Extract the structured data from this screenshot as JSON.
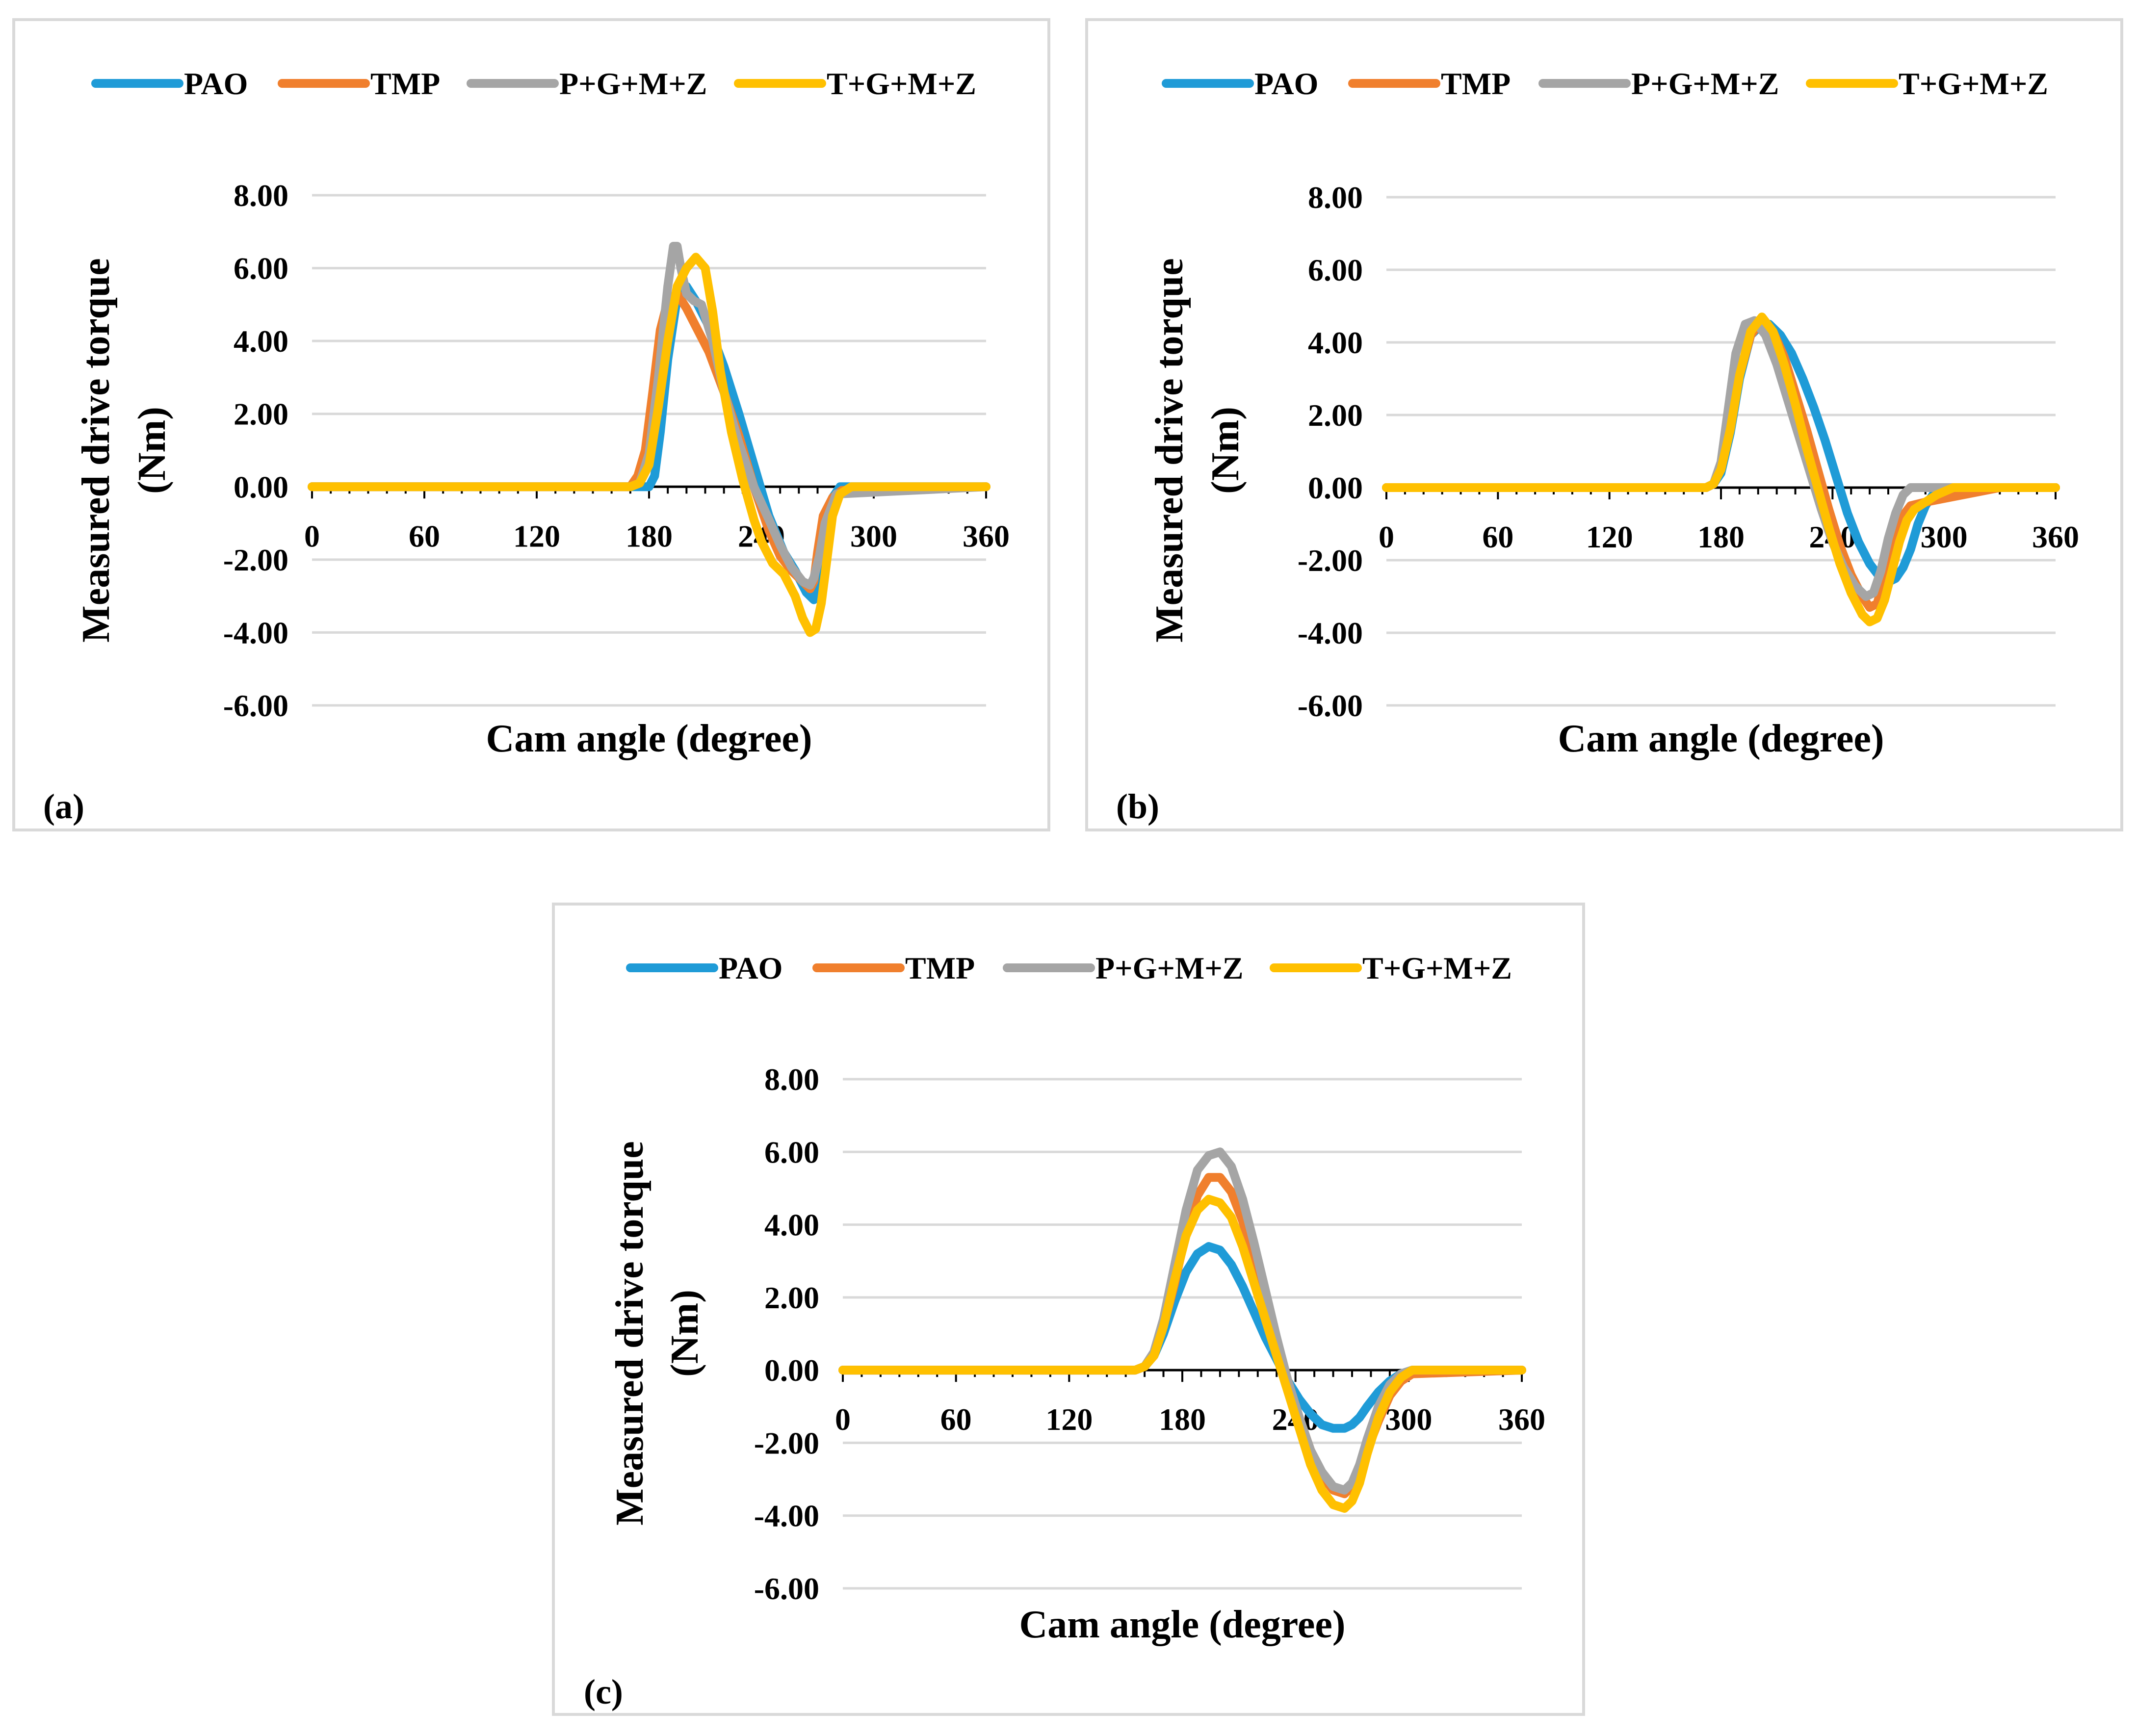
{
  "figure": {
    "panels_order": [
      "(a)",
      "(b)",
      "(c)"
    ]
  },
  "chart_data": [
    {
      "type": "line",
      "panel_label": "(a)",
      "xlabel": "Cam angle (degree)",
      "ylabel_line1": "Measured drive torque",
      "ylabel_line2": "(Nm)",
      "x_ticks": [
        "0",
        "60",
        "120",
        "180",
        "240",
        "300",
        "360"
      ],
      "y_ticks": [
        "8.00",
        "6.00",
        "4.00",
        "2.00",
        "0.00",
        "-2.00",
        "-4.00",
        "-6.00"
      ],
      "xlim": [
        0,
        360
      ],
      "ylim": [
        -6,
        8
      ],
      "series": [
        {
          "name": "PAO",
          "color": "#1F9BD7",
          "x": [
            0,
            170,
            180,
            183,
            186,
            190,
            195,
            200,
            205,
            212,
            220,
            228,
            236,
            244,
            252,
            258,
            264,
            268,
            271,
            274,
            278,
            282,
            360
          ],
          "y": [
            0,
            0,
            0,
            0.3,
            1.5,
            3.5,
            5.2,
            5.5,
            5.1,
            4.4,
            3.3,
            2.0,
            0.6,
            -0.8,
            -1.8,
            -2.3,
            -2.9,
            -3.1,
            -2.6,
            -1.2,
            -0.3,
            0,
            0
          ]
        },
        {
          "name": "TMP",
          "color": "#F07F2D",
          "x": [
            0,
            170,
            174,
            178,
            182,
            186,
            190,
            195,
            200,
            206,
            212,
            220,
            228,
            236,
            244,
            250,
            256,
            262,
            266,
            268,
            270,
            273,
            278,
            283,
            360
          ],
          "y": [
            0,
            0,
            0.3,
            1.0,
            2.6,
            4.3,
            5.1,
            5.3,
            4.9,
            4.3,
            3.7,
            2.6,
            1.4,
            0,
            -1.2,
            -1.9,
            -2.3,
            -2.6,
            -2.8,
            -2.6,
            -1.8,
            -0.8,
            -0.3,
            -0.1,
            0
          ]
        },
        {
          "name": "P+G+M+Z",
          "color": "#A5A5A5",
          "x": [
            0,
            170,
            175,
            180,
            185,
            190,
            193,
            195,
            197,
            200,
            204,
            208,
            214,
            220,
            228,
            236,
            244,
            250,
            256,
            262,
            266,
            268,
            271,
            274,
            280,
            360
          ],
          "y": [
            0,
            0,
            0.1,
            0.9,
            3.0,
            5.5,
            6.6,
            6.6,
            6.0,
            5.3,
            5.1,
            5.0,
            4.0,
            2.6,
            1.2,
            0,
            -0.9,
            -1.6,
            -2.2,
            -2.6,
            -2.7,
            -2.5,
            -1.9,
            -1.0,
            -0.2,
            0
          ]
        },
        {
          "name": "T+G+M+Z",
          "color": "#FFC000",
          "x": [
            0,
            170,
            175,
            180,
            185,
            190,
            195,
            200,
            205,
            210,
            214,
            218,
            224,
            230,
            236,
            240,
            246,
            252,
            258,
            262,
            266,
            269,
            272,
            275,
            278,
            282,
            288,
            360
          ],
          "y": [
            0,
            0,
            0.1,
            0.6,
            2.2,
            4.0,
            5.5,
            6.0,
            6.3,
            6.0,
            4.8,
            3.2,
            1.5,
            0.2,
            -0.9,
            -1.5,
            -2.1,
            -2.4,
            -3.0,
            -3.6,
            -4.0,
            -3.9,
            -3.2,
            -2.0,
            -0.8,
            -0.2,
            0,
            0
          ]
        }
      ]
    },
    {
      "type": "line",
      "panel_label": "(b)",
      "xlabel": "Cam angle (degree)",
      "ylabel_line1": "Measured drive torque",
      "ylabel_line2": "(Nm)",
      "x_ticks": [
        "0",
        "60",
        "120",
        "180",
        "240",
        "300",
        "360"
      ],
      "y_ticks": [
        "8.00",
        "6.00",
        "4.00",
        "2.00",
        "0.00",
        "-2.00",
        "-4.00",
        "-6.00"
      ],
      "xlim": [
        0,
        360
      ],
      "ylim": [
        -6,
        8
      ],
      "series": [
        {
          "name": "PAO",
          "color": "#1F9BD7",
          "x": [
            0,
            172,
            176,
            180,
            185,
            190,
            196,
            202,
            206,
            212,
            218,
            224,
            230,
            236,
            242,
            248,
            254,
            260,
            266,
            270,
            274,
            278,
            282,
            286,
            290,
            294,
            300,
            360
          ],
          "y": [
            0,
            0,
            0.1,
            0.4,
            1.5,
            3.0,
            4.2,
            4.5,
            4.5,
            4.2,
            3.7,
            3.0,
            2.2,
            1.3,
            0.3,
            -0.7,
            -1.5,
            -2.1,
            -2.5,
            -2.6,
            -2.5,
            -2.2,
            -1.7,
            -1.0,
            -0.5,
            -0.2,
            0,
            0
          ]
        },
        {
          "name": "TMP",
          "color": "#F07F2D",
          "x": [
            0,
            172,
            176,
            180,
            185,
            190,
            196,
            202,
            208,
            214,
            220,
            226,
            232,
            238,
            244,
            250,
            256,
            260,
            264,
            268,
            272,
            276,
            282,
            290,
            300,
            310,
            320,
            330,
            360
          ],
          "y": [
            0,
            0,
            0.1,
            0.5,
            1.6,
            3.1,
            4.2,
            4.6,
            4.3,
            3.6,
            2.6,
            1.6,
            0.5,
            -0.6,
            -1.6,
            -2.4,
            -3.0,
            -3.3,
            -3.2,
            -2.5,
            -1.6,
            -0.9,
            -0.5,
            -0.4,
            -0.3,
            -0.2,
            -0.1,
            0,
            0
          ]
        },
        {
          "name": "P+G+M+Z",
          "color": "#A5A5A5",
          "x": [
            0,
            172,
            176,
            180,
            184,
            188,
            193,
            198,
            204,
            210,
            216,
            222,
            228,
            234,
            240,
            246,
            252,
            258,
            262,
            266,
            270,
            274,
            278,
            282,
            290,
            360
          ],
          "y": [
            0,
            0,
            0.1,
            0.7,
            2.2,
            3.7,
            4.5,
            4.6,
            4.2,
            3.4,
            2.4,
            1.4,
            0.4,
            -0.6,
            -1.5,
            -2.2,
            -2.7,
            -3.0,
            -2.9,
            -2.3,
            -1.4,
            -0.7,
            -0.2,
            0,
            0,
            0
          ]
        },
        {
          "name": "T+G+M+Z",
          "color": "#FFC000",
          "x": [
            0,
            172,
            176,
            180,
            185,
            190,
            196,
            202,
            208,
            214,
            220,
            226,
            232,
            238,
            244,
            250,
            256,
            260,
            264,
            268,
            272,
            276,
            280,
            284,
            290,
            296,
            305,
            360
          ],
          "y": [
            0,
            0,
            0.1,
            0.5,
            1.6,
            3.1,
            4.3,
            4.7,
            4.3,
            3.4,
            2.3,
            1.1,
            0,
            -1.1,
            -2.1,
            -2.9,
            -3.5,
            -3.7,
            -3.6,
            -3.1,
            -2.3,
            -1.5,
            -0.9,
            -0.6,
            -0.4,
            -0.2,
            0,
            0
          ]
        }
      ]
    },
    {
      "type": "line",
      "panel_label": "(c)",
      "xlabel": "Cam angle (degree)",
      "ylabel_line1": "Measured drive torque",
      "ylabel_line2": "(Nm)",
      "x_ticks": [
        "0",
        "60",
        "120",
        "180",
        "240",
        "300",
        "360"
      ],
      "y_ticks": [
        "8.00",
        "6.00",
        "4.00",
        "2.00",
        "0.00",
        "-2.00",
        "-4.00",
        "-6.00"
      ],
      "xlim": [
        0,
        360
      ],
      "ylim": [
        -6,
        8
      ],
      "series": [
        {
          "name": "PAO",
          "color": "#1F9BD7",
          "x": [
            0,
            150,
            155,
            160,
            165,
            170,
            176,
            182,
            188,
            194,
            200,
            206,
            212,
            218,
            224,
            230,
            236,
            242,
            248,
            254,
            260,
            266,
            270,
            274,
            278,
            284,
            290,
            296,
            302,
            360
          ],
          "y": [
            0,
            0,
            0,
            0.1,
            0.4,
            1.0,
            1.9,
            2.7,
            3.2,
            3.4,
            3.3,
            2.9,
            2.3,
            1.6,
            0.9,
            0.3,
            -0.3,
            -0.8,
            -1.2,
            -1.5,
            -1.6,
            -1.6,
            -1.5,
            -1.3,
            -1.0,
            -0.6,
            -0.3,
            -0.1,
            0,
            0
          ]
        },
        {
          "name": "TMP",
          "color": "#F07F2D",
          "x": [
            0,
            150,
            155,
            160,
            165,
            170,
            176,
            182,
            188,
            194,
            200,
            206,
            212,
            218,
            224,
            230,
            236,
            242,
            248,
            254,
            260,
            266,
            270,
            274,
            278,
            284,
            290,
            296,
            302,
            360
          ],
          "y": [
            0,
            0,
            0,
            0.1,
            0.4,
            1.2,
            2.4,
            3.8,
            4.8,
            5.3,
            5.3,
            4.9,
            4.1,
            3.0,
            1.9,
            0.8,
            -0.3,
            -1.3,
            -2.2,
            -2.9,
            -3.3,
            -3.4,
            -3.2,
            -2.8,
            -2.2,
            -1.4,
            -0.7,
            -0.3,
            -0.1,
            0
          ]
        },
        {
          "name": "P+G+M+Z",
          "color": "#A5A5A5",
          "x": [
            0,
            150,
            155,
            160,
            165,
            170,
            176,
            182,
            188,
            194,
            200,
            206,
            212,
            218,
            224,
            230,
            236,
            242,
            248,
            254,
            260,
            266,
            270,
            274,
            278,
            284,
            290,
            296,
            302,
            360
          ],
          "y": [
            0,
            0,
            0,
            0.1,
            0.5,
            1.4,
            2.9,
            4.4,
            5.5,
            5.9,
            6.0,
            5.6,
            4.7,
            3.5,
            2.2,
            0.9,
            -0.3,
            -1.3,
            -2.2,
            -2.8,
            -3.2,
            -3.3,
            -3.1,
            -2.6,
            -1.9,
            -1.0,
            -0.4,
            -0.1,
            0,
            0
          ]
        },
        {
          "name": "T+G+M+Z",
          "color": "#FFC000",
          "x": [
            0,
            150,
            155,
            160,
            165,
            170,
            176,
            182,
            188,
            194,
            200,
            206,
            212,
            218,
            224,
            230,
            236,
            242,
            248,
            254,
            260,
            266,
            270,
            274,
            278,
            284,
            290,
            296,
            302,
            360
          ],
          "y": [
            0,
            0,
            0,
            0.1,
            0.4,
            1.2,
            2.5,
            3.7,
            4.4,
            4.7,
            4.6,
            4.2,
            3.4,
            2.4,
            1.4,
            0.4,
            -0.6,
            -1.6,
            -2.6,
            -3.3,
            -3.7,
            -3.8,
            -3.6,
            -3.1,
            -2.3,
            -1.3,
            -0.6,
            -0.2,
            0,
            0
          ]
        }
      ]
    }
  ]
}
